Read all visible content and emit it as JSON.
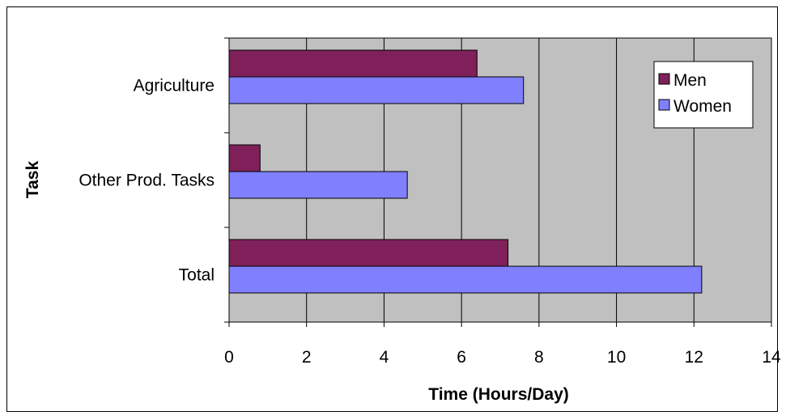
{
  "chart_data": {
    "type": "bar",
    "orientation": "horizontal",
    "title": "",
    "xlabel": "Time (Hours/Day)",
    "ylabel": "Task",
    "categories": [
      "Agriculture",
      "Other Prod. Tasks",
      "Total"
    ],
    "series": [
      {
        "name": "Men",
        "values": [
          6.4,
          0.8,
          7.2
        ],
        "color": "#80205a"
      },
      {
        "name": "Women",
        "values": [
          7.6,
          4.6,
          12.2
        ],
        "color": "#8080ff"
      }
    ],
    "xlim": [
      0,
      14
    ],
    "xticks": [
      "0",
      "2",
      "4",
      "6",
      "8",
      "10",
      "12",
      "14"
    ],
    "grid": true,
    "plot_background": "#c0c0c0",
    "legend_position": "top-right"
  }
}
